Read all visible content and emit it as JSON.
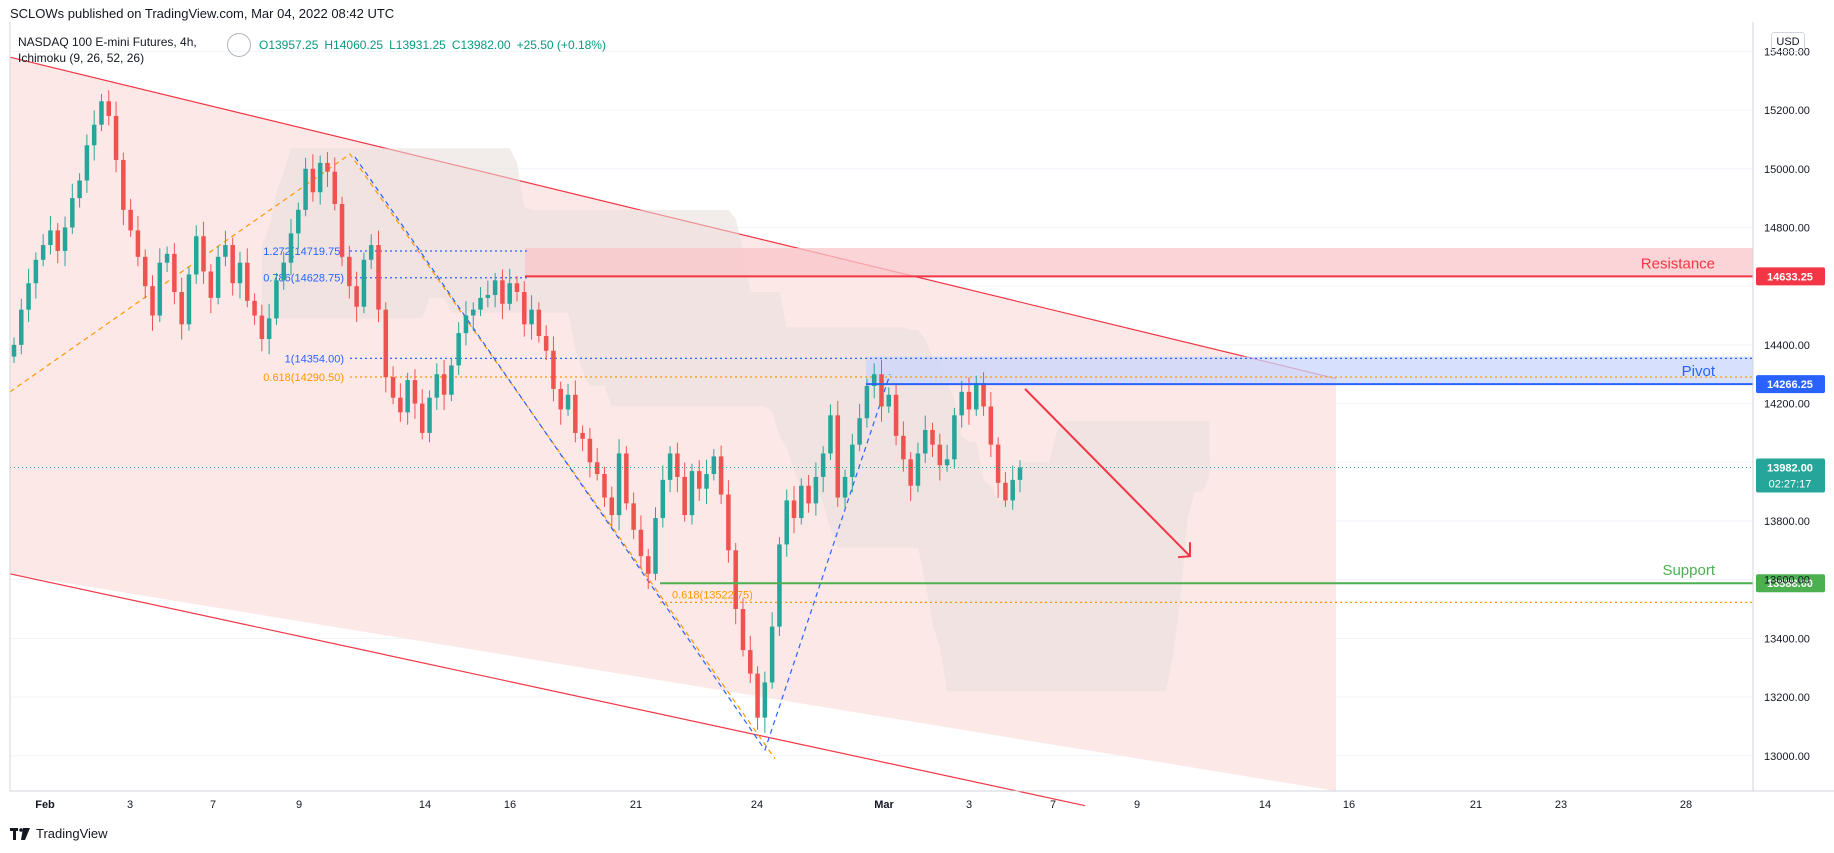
{
  "header": {
    "published_by": "SCLOWs published on TradingView.com, Mar 04, 2022 08:42 UTC",
    "symbol_line": "NASDAQ 100 E-mini Futures, 4h,",
    "indicator_line": "Ichimoku (9, 26, 52, 26)",
    "ohlc": {
      "open": "O13957.25",
      "high": "H14060.25",
      "low": "L13931.25",
      "close": "C13982.00",
      "change": "+25.50 (+0.18%)"
    }
  },
  "currency": "USD",
  "footer": {
    "brand": "TradingView",
    "logo_icon": "tradingview-logo-icon"
  },
  "colors": {
    "bull": "#26a69a",
    "bear": "#ef5350",
    "resistance": "#f23645",
    "pivot": "#2962ff",
    "support": "#4caf50",
    "fib": "#ff9800",
    "channel_fill": "#fde4e4",
    "cloud": "#e8dedb"
  },
  "chart_data": {
    "type": "candlestick",
    "timeframe": "4h",
    "ylim": [
      12880,
      15500
    ],
    "y_ticks": [
      13000,
      13200,
      13400,
      13600,
      13800,
      14000,
      14200,
      14400,
      14600,
      14800,
      15000,
      15200,
      15400
    ],
    "y_tick_labels": [
      "13000.00",
      "13200.00",
      "13400.00",
      "13600.00",
      "13800.00",
      "",
      "14200.00",
      "14400.00",
      "",
      "14800.00",
      "15000.00",
      "15200.00",
      "15400.00"
    ],
    "x_ticks": [
      {
        "label": "Feb",
        "bold": true
      },
      {
        "label": "3"
      },
      {
        "label": "7"
      },
      {
        "label": "9"
      },
      {
        "label": "14"
      },
      {
        "label": "16"
      },
      {
        "label": "21"
      },
      {
        "label": "24"
      },
      {
        "label": "Mar",
        "bold": true
      },
      {
        "label": "3"
      },
      {
        "label": "7"
      },
      {
        "label": "9"
      },
      {
        "label": "14"
      },
      {
        "label": "16"
      },
      {
        "label": "21"
      },
      {
        "label": "23"
      },
      {
        "label": "28"
      }
    ],
    "closes": [
      14400,
      14520,
      14610,
      14690,
      14740,
      14790,
      14720,
      14800,
      14900,
      14960,
      15080,
      15150,
      15230,
      15180,
      15030,
      14860,
      14790,
      14700,
      14600,
      14500,
      14680,
      14710,
      14580,
      14470,
      14640,
      14770,
      14650,
      14560,
      14700,
      14740,
      14610,
      14680,
      14550,
      14500,
      14420,
      14490,
      14620,
      14680,
      14780,
      14860,
      15000,
      14920,
      15020,
      14990,
      14880,
      14700,
      14600,
      14530,
      14690,
      14740,
      14520,
      14290,
      14220,
      14170,
      14280,
      14200,
      14100,
      14220,
      14300,
      14230,
      14330,
      14440,
      14500,
      14520,
      14560,
      14570,
      14620,
      14540,
      14610,
      14580,
      14470,
      14520,
      14430,
      14380,
      14250,
      14180,
      14230,
      14100,
      14080,
      14000,
      13960,
      13880,
      13820,
      14030,
      13860,
      13770,
      13680,
      13620,
      13810,
      13940,
      14030,
      13950,
      13820,
      13970,
      13910,
      13960,
      14020,
      13890,
      13700,
      13500,
      13360,
      13280,
      13130,
      13250,
      13440,
      13720,
      13870,
      13810,
      13920,
      13860,
      13950,
      14030,
      14160,
      13880,
      13950,
      14060,
      14150,
      14260,
      14300,
      14190,
      14230,
      14090,
      14010,
      13920,
      14030,
      14110,
      14060,
      13990,
      14010,
      14160,
      14240,
      14180,
      14270,
      14190,
      14060,
      13930,
      13870,
      13940,
      13982
    ],
    "current_price": {
      "value": "13982.00",
      "countdown": "02:27:17"
    },
    "fib_left": [
      {
        "label": "1.272(14719.75)",
        "value": 14719.75
      },
      {
        "label": "0.786(14628.75)",
        "value": 14628.75
      },
      {
        "label": "1(14354.00)",
        "value": 14354.0
      },
      {
        "label": "0.618(14290.50)",
        "value": 14290.5
      }
    ],
    "fib_bottom": {
      "label": "0.618(13522.75)",
      "value": 13522.75
    },
    "levels": [
      {
        "name": "Resistance",
        "value": 14633.25,
        "value_label": "14633.25",
        "zone": [
          14633.25,
          14730
        ]
      },
      {
        "name": "Pivot",
        "value": 14266.25,
        "value_label": "14266.25",
        "zone": [
          14266.25,
          14360
        ]
      },
      {
        "name": "Support",
        "value": 13588.0,
        "value_label": "13588.00"
      }
    ],
    "projection_arrow": {
      "from": 14250,
      "to": 13680
    }
  }
}
